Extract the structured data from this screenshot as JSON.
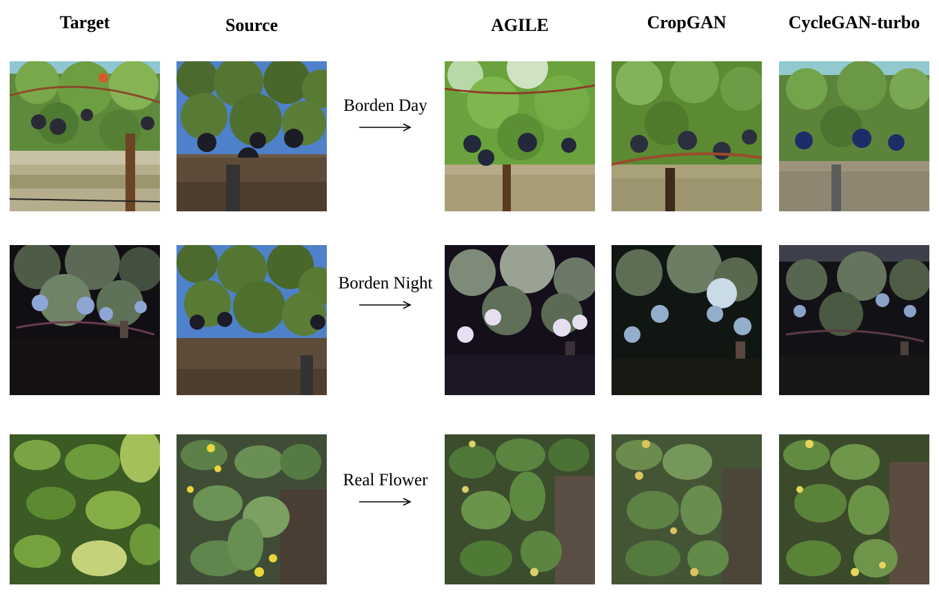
{
  "column_headers": {
    "target": "Target",
    "source": "Source",
    "agile": "AGILE",
    "cropgan": "CropGAN",
    "cyclegan_turbo": "CycleGAN-turbo"
  },
  "rows": [
    {
      "task_label": "Borden Day"
    },
    {
      "task_label": "Borden Night"
    },
    {
      "task_label": "Real Flower"
    }
  ]
}
